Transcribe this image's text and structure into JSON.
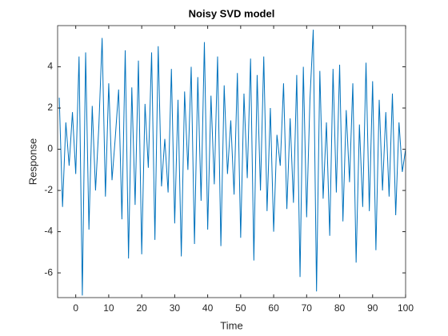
{
  "chart_data": {
    "type": "line",
    "title": "Noisy SVD model",
    "xlabel": "Time",
    "ylabel": "Response",
    "x": [
      -5,
      -4,
      -3,
      -2,
      -1,
      0,
      1,
      2,
      3,
      4,
      5,
      6,
      7,
      8,
      9,
      10,
      11,
      12,
      13,
      14,
      15,
      16,
      17,
      18,
      19,
      20,
      21,
      22,
      23,
      24,
      25,
      26,
      27,
      28,
      29,
      30,
      31,
      32,
      33,
      34,
      35,
      36,
      37,
      38,
      39,
      40,
      41,
      42,
      43,
      44,
      45,
      46,
      47,
      48,
      49,
      50,
      51,
      52,
      53,
      54,
      55,
      56,
      57,
      58,
      59,
      60,
      61,
      62,
      63,
      64,
      65,
      66,
      67,
      68,
      69,
      70,
      71,
      72,
      73,
      74,
      75,
      76,
      77,
      78,
      79,
      80,
      81,
      82,
      83,
      84,
      85,
      86,
      87,
      88,
      89,
      90,
      91,
      92,
      93,
      94,
      95,
      96,
      97,
      98,
      99,
      100
    ],
    "series": [
      {
        "name": "Response",
        "color": "#0072bd",
        "values": [
          2.5,
          -2.8,
          1.3,
          -0.8,
          1.8,
          -1.2,
          4.5,
          -7.1,
          4.7,
          -3.9,
          2.1,
          -2.0,
          1.1,
          5.4,
          -2.3,
          3.2,
          -1.5,
          0.6,
          2.9,
          -3.4,
          4.8,
          -5.3,
          3.0,
          -2.7,
          4.3,
          -5.1,
          2.2,
          -0.9,
          4.7,
          -4.4,
          5.0,
          -1.8,
          0.5,
          -2.1,
          3.9,
          -3.6,
          2.4,
          -5.2,
          2.8,
          -1.0,
          4.0,
          -4.6,
          3.5,
          -2.5,
          5.2,
          -3.9,
          2.6,
          -1.7,
          4.5,
          -4.7,
          3.1,
          -1.2,
          1.4,
          -2.2,
          3.7,
          -4.3,
          2.7,
          -1.4,
          4.4,
          -5.4,
          3.6,
          -2.0,
          4.5,
          -3.0,
          2.0,
          -4.0,
          0.7,
          -0.8,
          3.2,
          -2.9,
          1.5,
          -2.6,
          3.6,
          -6.2,
          4.0,
          -3.3,
          2.4,
          5.8,
          -6.9,
          3.8,
          -2.4,
          1.3,
          -4.2,
          3.9,
          -2.1,
          4.1,
          -3.5,
          1.9,
          -1.6,
          3.2,
          -5.5,
          1.2,
          -2.8,
          4.2,
          -3.0,
          3.3,
          -4.9,
          2.4,
          -2.0,
          1.8,
          -2.3,
          2.7,
          -3.2,
          1.3,
          -1.1,
          0.0
        ]
      }
    ],
    "xlim": [
      -5.5,
      100
    ],
    "xticks": [
      0,
      10,
      20,
      30,
      40,
      50,
      60,
      70,
      80,
      90,
      100
    ],
    "ylim": [
      -7.2,
      6
    ],
    "yticks": [
      -6,
      -4,
      -2,
      0,
      2,
      4
    ],
    "grid": false
  }
}
